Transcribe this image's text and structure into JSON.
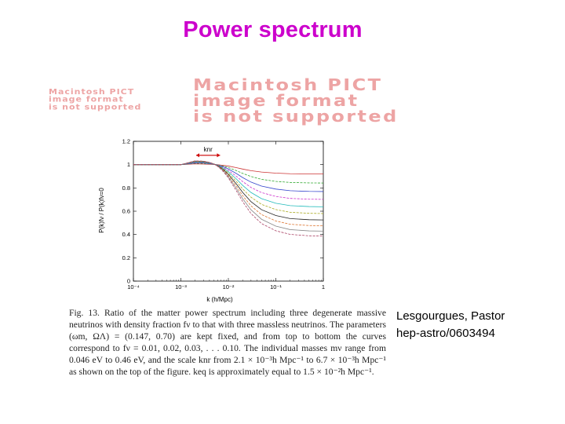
{
  "slide": {
    "title": "Power spectrum"
  },
  "placeholders": {
    "small": "Macintosh PICT\nimage format\nis not supported",
    "large": "Macintosh PICT\nimage format\nis not supported"
  },
  "credit": {
    "authors": "Lesgourgues, Pastor",
    "reference": "hep-astro/0603494"
  },
  "caption": {
    "label": "Fig. 13.",
    "text": "Ratio of the matter power spectrum including three degenerate massive neutrinos with density fraction fν to that with three massless neutrinos. The parameters (ωm, ΩΛ) = (0.147, 0.70) are kept fixed, and from top to bottom the curves correspond to fν = 0.01, 0.02, 0.03, . . . 0.10. The individual masses mν range from 0.046 eV to 0.46 eV, and the scale knr from 2.1 × 10⁻³h Mpc⁻¹ to 6.7 × 10⁻³h Mpc⁻¹ as shown on the top of the figure. keq is approximately equal to 1.5 × 10⁻²h Mpc⁻¹."
  },
  "chart_data": {
    "type": "line",
    "xlabel": "k (h/Mpc)",
    "ylabel": "P(k)fν / P(k)fν=0",
    "x_scale": "log",
    "xlim": [
      0.0001,
      1
    ],
    "ylim": [
      0,
      1.2
    ],
    "x_tick_labels": [
      "10⁻⁴",
      "10⁻³",
      "10⁻²",
      "10⁻¹",
      "1"
    ],
    "y_ticks": [
      0,
      0.2,
      0.4,
      0.6,
      0.8,
      1,
      1.2
    ],
    "annotation": "knr",
    "annotation_range": [
      0.0021,
      0.0067
    ],
    "x": [
      0.0001,
      0.0005,
      0.001,
      0.002,
      0.003,
      0.004,
      0.005,
      0.006,
      0.007,
      0.008,
      0.01,
      0.015,
      0.02,
      0.03,
      0.05,
      0.1,
      0.2,
      0.5,
      1
    ],
    "series": [
      {
        "color": "#cc3333",
        "values": [
          1,
          1,
          1,
          1.006,
          1.005,
          1.003,
          1.001,
          0.999,
          0.996,
          0.993,
          0.988,
          0.973,
          0.962,
          0.948,
          0.936,
          0.927,
          0.922,
          0.92,
          0.92
        ]
      },
      {
        "color": "#33aa33",
        "values": [
          1,
          1,
          1,
          1.011,
          1.01,
          1.006,
          1.002,
          0.997,
          0.992,
          0.986,
          0.975,
          0.947,
          0.925,
          0.898,
          0.874,
          0.856,
          0.847,
          0.843,
          0.842
        ]
      },
      {
        "color": "#3344cc",
        "values": [
          1,
          1,
          1,
          1.015,
          1.014,
          1.009,
          1.003,
          0.996,
          0.988,
          0.98,
          0.963,
          0.922,
          0.889,
          0.85,
          0.816,
          0.79,
          0.776,
          0.77,
          0.769
        ]
      },
      {
        "color": "#cc33cc",
        "values": [
          1,
          1,
          1,
          1.019,
          1.017,
          1.012,
          1.004,
          0.995,
          0.984,
          0.973,
          0.951,
          0.897,
          0.855,
          0.804,
          0.76,
          0.727,
          0.71,
          0.703,
          0.702
        ]
      },
      {
        "color": "#22bbbb",
        "values": [
          1,
          1,
          1,
          1.022,
          1.02,
          1.014,
          1.005,
          0.993,
          0.98,
          0.966,
          0.939,
          0.874,
          0.822,
          0.761,
          0.708,
          0.668,
          0.648,
          0.64,
          0.638
        ]
      },
      {
        "color": "#aaaa22",
        "values": [
          1,
          1,
          1,
          1.025,
          1.023,
          1.016,
          1.005,
          0.992,
          0.976,
          0.96,
          0.928,
          0.852,
          0.791,
          0.72,
          0.659,
          0.614,
          0.591,
          0.582,
          0.58
        ]
      },
      {
        "color": "#222222",
        "values": [
          1,
          1,
          1,
          1.027,
          1.025,
          1.017,
          1.005,
          0.99,
          0.972,
          0.954,
          0.917,
          0.83,
          0.762,
          0.682,
          0.613,
          0.563,
          0.537,
          0.527,
          0.525
        ]
      },
      {
        "color": "#dd7733",
        "values": [
          1,
          1,
          1,
          1.029,
          1.027,
          1.018,
          1.005,
          0.988,
          0.968,
          0.948,
          0.906,
          0.81,
          0.734,
          0.646,
          0.571,
          0.516,
          0.488,
          0.477,
          0.475
        ]
      },
      {
        "color": "#888888",
        "values": [
          1,
          1,
          1,
          1.031,
          1.029,
          1.019,
          1.005,
          0.986,
          0.964,
          0.942,
          0.896,
          0.79,
          0.708,
          0.612,
          0.531,
          0.472,
          0.442,
          0.431,
          0.429
        ]
      },
      {
        "color": "#aa4466",
        "values": [
          1,
          1,
          1,
          1.033,
          1.03,
          1.02,
          1.004,
          0.984,
          0.96,
          0.936,
          0.886,
          0.771,
          0.683,
          0.58,
          0.494,
          0.432,
          0.401,
          0.389,
          0.387
        ]
      }
    ]
  }
}
